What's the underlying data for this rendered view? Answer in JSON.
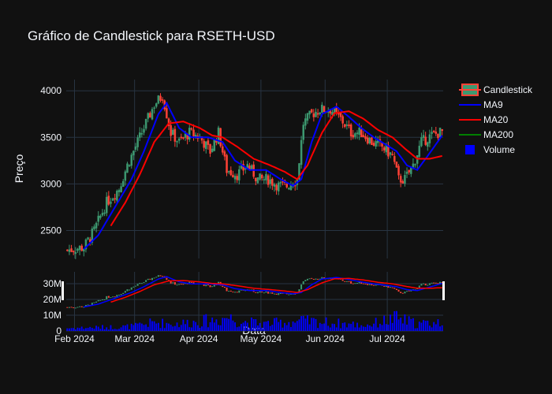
{
  "chart_data": {
    "type": "candlestick",
    "title": "Gráfico de Candlestick para RSETH-USD",
    "xlabel": "Data",
    "ylabel": "Preço",
    "ylim": [
      2200,
      4120
    ],
    "yticks": [
      2500,
      3000,
      3500,
      4000
    ],
    "volume_ylim": [
      0,
      14000000
    ],
    "volume_yticks": [
      {
        "value": 0,
        "label": "0"
      },
      {
        "value": 10000000,
        "label": "10M"
      },
      {
        "value": 20000000,
        "label": "20M"
      },
      {
        "value": 30000000,
        "label": "30M"
      }
    ],
    "x_start": "2024-01-28",
    "x_end": "2024-07-27",
    "xticks": [
      {
        "date": "2024-02-01",
        "label": "Feb 2024"
      },
      {
        "date": "2024-03-01",
        "label": "Mar 2024"
      },
      {
        "date": "2024-04-01",
        "label": "Apr 2024"
      },
      {
        "date": "2024-05-01",
        "label": "May 2024"
      },
      {
        "date": "2024-06-01",
        "label": "Jun 2024"
      },
      {
        "date": "2024-07-01",
        "label": "Jul 2024"
      }
    ],
    "grid": true,
    "legend_position": "top-right",
    "colors": {
      "increasing": "#3d9970",
      "decreasing": "#ff4136",
      "ma9": "#0000ff",
      "ma20": "#ff0000",
      "ma200": "#008000",
      "volume": "#0000ff",
      "background": "#111111",
      "grid": "#283442",
      "text": "#f2f5fa"
    },
    "legend": [
      {
        "name": "Candlestick",
        "kind": "candle"
      },
      {
        "name": "MA9",
        "kind": "line",
        "color": "#0000ff"
      },
      {
        "name": "MA20",
        "kind": "line",
        "color": "#ff0000"
      },
      {
        "name": "MA200",
        "kind": "line",
        "color": "#008000"
      },
      {
        "name": "Volume",
        "kind": "square",
        "color": "#0000ff"
      }
    ],
    "close_anchors": [
      [
        "2024-01-28",
        2290
      ],
      [
        "2024-02-05",
        2320
      ],
      [
        "2024-02-10",
        2500
      ],
      [
        "2024-02-16",
        2800
      ],
      [
        "2024-02-22",
        2950
      ],
      [
        "2024-02-26",
        3200
      ],
      [
        "2024-03-02",
        3450
      ],
      [
        "2024-03-06",
        3650
      ],
      [
        "2024-03-10",
        3850
      ],
      [
        "2024-03-14",
        3950
      ],
      [
        "2024-03-18",
        3550
      ],
      [
        "2024-03-22",
        3450
      ],
      [
        "2024-03-27",
        3550
      ],
      [
        "2024-04-01",
        3500
      ],
      [
        "2024-04-06",
        3350
      ],
      [
        "2024-04-10",
        3550
      ],
      [
        "2024-04-14",
        3150
      ],
      [
        "2024-04-19",
        3100
      ],
      [
        "2024-04-24",
        3200
      ],
      [
        "2024-04-29",
        3050
      ],
      [
        "2024-05-04",
        3050
      ],
      [
        "2024-05-09",
        2980
      ],
      [
        "2024-05-13",
        2980
      ],
      [
        "2024-05-18",
        3050
      ],
      [
        "2024-05-21",
        3650
      ],
      [
        "2024-05-25",
        3750
      ],
      [
        "2024-05-29",
        3800
      ],
      [
        "2024-06-03",
        3800
      ],
      [
        "2024-06-08",
        3700
      ],
      [
        "2024-06-13",
        3550
      ],
      [
        "2024-06-18",
        3550
      ],
      [
        "2024-06-23",
        3450
      ],
      [
        "2024-06-28",
        3400
      ],
      [
        "2024-07-03",
        3300
      ],
      [
        "2024-07-06",
        3050
      ],
      [
        "2024-07-09",
        3050
      ],
      [
        "2024-07-13",
        3200
      ],
      [
        "2024-07-17",
        3450
      ],
      [
        "2024-07-22",
        3520
      ],
      [
        "2024-07-27",
        3560
      ]
    ],
    "volume_anchors": [
      [
        "2024-01-28",
        2000000
      ],
      [
        "2024-02-25",
        3000000
      ],
      [
        "2024-03-01",
        3500000
      ],
      [
        "2024-03-10",
        6000000
      ],
      [
        "2024-03-20",
        5000000
      ],
      [
        "2024-04-10",
        8000000
      ],
      [
        "2024-04-14",
        10000000
      ],
      [
        "2024-04-20",
        7000000
      ],
      [
        "2024-05-01",
        5000000
      ],
      [
        "2024-05-20",
        7000000
      ],
      [
        "2024-06-01",
        6000000
      ],
      [
        "2024-06-20",
        4000000
      ],
      [
        "2024-07-05",
        9000000
      ],
      [
        "2024-07-15",
        5000000
      ],
      [
        "2024-07-27",
        6000000
      ]
    ],
    "ma9_anchors": [
      [
        "2024-02-05",
        2300
      ],
      [
        "2024-02-12",
        2450
      ],
      [
        "2024-02-20",
        2750
      ],
      [
        "2024-02-28",
        3050
      ],
      [
        "2024-03-05",
        3350
      ],
      [
        "2024-03-12",
        3750
      ],
      [
        "2024-03-16",
        3870
      ],
      [
        "2024-03-22",
        3600
      ],
      [
        "2024-03-28",
        3500
      ],
      [
        "2024-04-05",
        3500
      ],
      [
        "2024-04-12",
        3450
      ],
      [
        "2024-04-18",
        3250
      ],
      [
        "2024-04-25",
        3150
      ],
      [
        "2024-05-03",
        3150
      ],
      [
        "2024-05-10",
        3050
      ],
      [
        "2024-05-16",
        2980
      ],
      [
        "2024-05-20",
        3050
      ],
      [
        "2024-05-25",
        3450
      ],
      [
        "2024-05-30",
        3750
      ],
      [
        "2024-06-06",
        3830
      ],
      [
        "2024-06-12",
        3720
      ],
      [
        "2024-06-18",
        3600
      ],
      [
        "2024-06-24",
        3500
      ],
      [
        "2024-06-30",
        3420
      ],
      [
        "2024-07-05",
        3350
      ],
      [
        "2024-07-10",
        3200
      ],
      [
        "2024-07-15",
        3150
      ],
      [
        "2024-07-20",
        3300
      ],
      [
        "2024-07-27",
        3520
      ]
    ],
    "ma20_anchors": [
      [
        "2024-02-18",
        2550
      ],
      [
        "2024-02-25",
        2800
      ],
      [
        "2024-03-03",
        3100
      ],
      [
        "2024-03-10",
        3450
      ],
      [
        "2024-03-17",
        3650
      ],
      [
        "2024-03-24",
        3670
      ],
      [
        "2024-04-01",
        3600
      ],
      [
        "2024-04-07",
        3520
      ],
      [
        "2024-04-12",
        3500
      ],
      [
        "2024-04-19",
        3400
      ],
      [
        "2024-04-27",
        3270
      ],
      [
        "2024-05-05",
        3200
      ],
      [
        "2024-05-12",
        3130
      ],
      [
        "2024-05-18",
        3050
      ],
      [
        "2024-05-23",
        3200
      ],
      [
        "2024-05-30",
        3550
      ],
      [
        "2024-06-05",
        3760
      ],
      [
        "2024-06-12",
        3780
      ],
      [
        "2024-06-19",
        3700
      ],
      [
        "2024-06-26",
        3580
      ],
      [
        "2024-07-03",
        3500
      ],
      [
        "2024-07-09",
        3380
      ],
      [
        "2024-07-15",
        3270
      ],
      [
        "2024-07-21",
        3270
      ],
      [
        "2024-07-27",
        3300
      ]
    ]
  }
}
